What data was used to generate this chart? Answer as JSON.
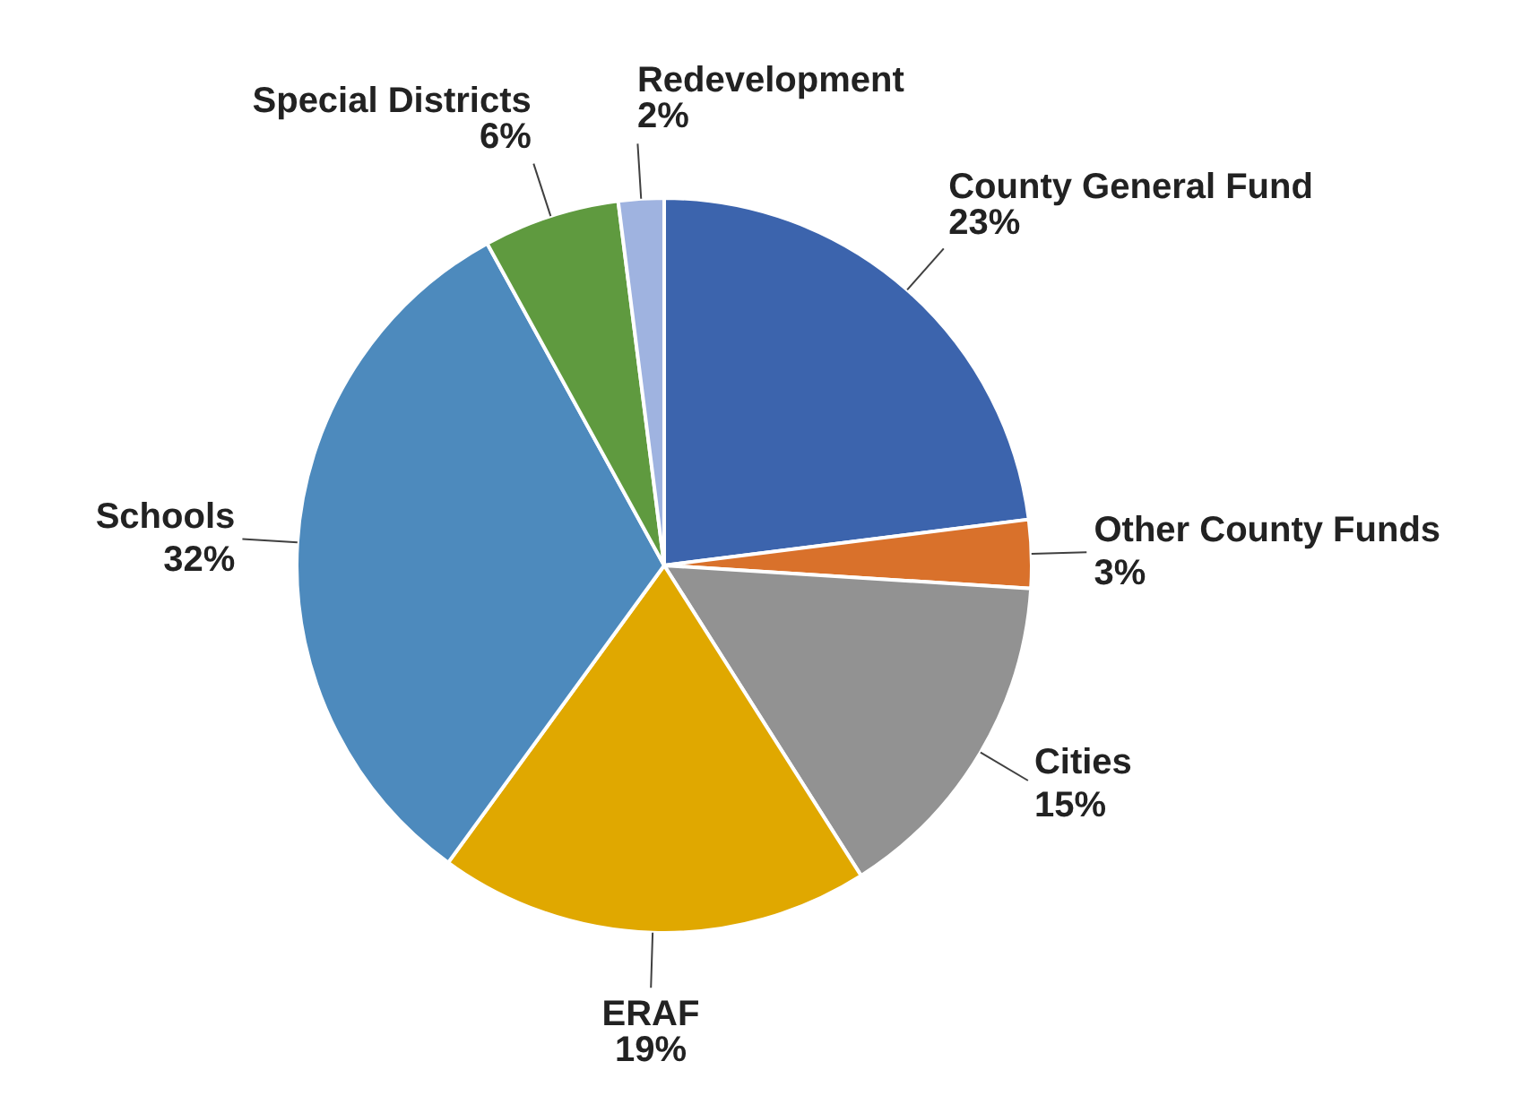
{
  "chart_data": {
    "type": "pie",
    "categories": [
      "County General Fund",
      "Other County Funds",
      "Cities",
      "ERAF",
      "Schools",
      "Special Districts",
      "Redevelopment"
    ],
    "values": [
      23,
      3,
      15,
      19,
      32,
      6,
      2
    ],
    "value_labels": [
      "23%",
      "3%",
      "15%",
      "19%",
      "32%",
      "6%",
      "2%"
    ],
    "colors": [
      "#3c64ad",
      "#d9712b",
      "#929292",
      "#e0a800",
      "#4d8abd",
      "#5f9a3f",
      "#9fb3e0"
    ]
  }
}
